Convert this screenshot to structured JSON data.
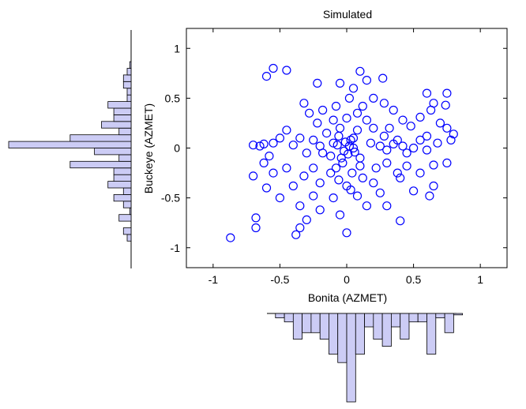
{
  "chart_data": {
    "type": "scatter",
    "title": "Simulated",
    "xlabel": "Bonita (AZMET)",
    "ylabel": "Buckeye (AZMET)",
    "xlim": [
      -1.2,
      1.2
    ],
    "ylim": [
      -1.2,
      1.2
    ],
    "xticks": [
      -1,
      -0.5,
      0,
      0.5,
      1
    ],
    "yticks": [
      -1,
      -0.5,
      0,
      0.5,
      1
    ],
    "xtick_labels": [
      "-1",
      "-0.5",
      "0",
      "0.5",
      "1"
    ],
    "ytick_labels": [
      "-1",
      "-0.5",
      "0",
      "0.5",
      "1"
    ],
    "grid": false,
    "marker": "open circle",
    "marker_color": "#0000ff",
    "points": [
      [
        -0.6,
        0.72
      ],
      [
        -0.55,
        0.8
      ],
      [
        -0.45,
        0.78
      ],
      [
        0.1,
        0.77
      ],
      [
        -0.05,
        0.65
      ],
      [
        0.15,
        0.68
      ],
      [
        0.27,
        0.7
      ],
      [
        -0.22,
        0.65
      ],
      [
        0.05,
        0.6
      ],
      [
        0.6,
        0.55
      ],
      [
        0.75,
        0.55
      ],
      [
        0.74,
        0.43
      ],
      [
        0.65,
        0.45
      ],
      [
        0.8,
        0.14
      ],
      [
        0.75,
        0.2
      ],
      [
        0.78,
        0.08
      ],
      [
        0.63,
        0.38
      ],
      [
        0.7,
        0.25
      ],
      [
        0.55,
        0.31
      ],
      [
        0.48,
        0.22
      ],
      [
        0.6,
        -0.02
      ],
      [
        0.55,
        -0.25
      ],
      [
        0.65,
        -0.17
      ],
      [
        0.75,
        -0.15
      ],
      [
        0.4,
        -0.3
      ],
      [
        0.5,
        -0.43
      ],
      [
        0.62,
        -0.48
      ],
      [
        0.65,
        -0.38
      ],
      [
        0.3,
        -0.58
      ],
      [
        0.4,
        -0.73
      ],
      [
        0.15,
        -0.58
      ],
      [
        -0.05,
        -0.67
      ],
      [
        0.0,
        -0.85
      ],
      [
        -0.3,
        -0.72
      ],
      [
        -0.35,
        -0.8
      ],
      [
        -0.38,
        -0.87
      ],
      [
        -0.87,
        -0.9
      ],
      [
        -0.68,
        -0.7
      ],
      [
        -0.68,
        -0.8
      ],
      [
        -0.7,
        -0.28
      ],
      [
        -0.6,
        -0.4
      ],
      [
        -0.55,
        -0.25
      ],
      [
        -0.5,
        -0.5
      ],
      [
        -0.45,
        -0.2
      ],
      [
        -0.7,
        0.03
      ],
      [
        -0.65,
        0.02
      ],
      [
        -0.62,
        0.04
      ],
      [
        -0.55,
        0.05
      ],
      [
        -0.4,
        0.03
      ],
      [
        -0.25,
        0.08
      ],
      [
        -0.2,
        0.02
      ],
      [
        -0.18,
        -0.05
      ],
      [
        -0.3,
        -0.05
      ],
      [
        -0.35,
        0.1
      ],
      [
        -0.1,
        0.05
      ],
      [
        -0.12,
        -0.08
      ],
      [
        0.02,
        0.02
      ],
      [
        -0.02,
        -0.03
      ],
      [
        0.05,
        0.1
      ],
      [
        -0.05,
        0.2
      ],
      [
        0.0,
        0.3
      ],
      [
        0.08,
        0.35
      ],
      [
        -0.08,
        0.42
      ],
      [
        0.02,
        0.5
      ],
      [
        -0.03,
        -0.15
      ],
      [
        0.04,
        -0.25
      ],
      [
        -0.06,
        -0.32
      ],
      [
        0.03,
        -0.42
      ],
      [
        0.0,
        -0.38
      ],
      [
        0.1,
        -0.1
      ],
      [
        0.18,
        0.05
      ],
      [
        0.25,
        0.02
      ],
      [
        0.3,
        -0.02
      ],
      [
        0.35,
        0.04
      ],
      [
        0.42,
        0.02
      ],
      [
        0.5,
        0.0
      ],
      [
        0.45,
        -0.05
      ],
      [
        0.38,
        0.08
      ],
      [
        0.28,
        0.12
      ],
      [
        0.2,
        0.2
      ],
      [
        0.15,
        0.28
      ],
      [
        0.22,
        -0.2
      ],
      [
        0.3,
        -0.15
      ],
      [
        0.12,
        -0.3
      ],
      [
        0.2,
        -0.35
      ],
      [
        -0.15,
        0.15
      ],
      [
        -0.22,
        0.25
      ],
      [
        -0.28,
        0.35
      ],
      [
        -0.32,
        0.45
      ],
      [
        -0.18,
        0.38
      ],
      [
        -0.1,
        0.28
      ],
      [
        -0.25,
        -0.2
      ],
      [
        -0.32,
        -0.28
      ],
      [
        -0.2,
        -0.35
      ],
      [
        -0.12,
        -0.25
      ],
      [
        -0.4,
        -0.38
      ],
      [
        0.08,
        0.18
      ],
      [
        -0.06,
        0.12
      ],
      [
        0.1,
        -0.18
      ],
      [
        -0.08,
        -0.2
      ],
      [
        0.12,
        0.42
      ],
      [
        0.2,
        0.5
      ],
      [
        0.28,
        0.45
      ],
      [
        0.35,
        0.38
      ],
      [
        0.42,
        0.28
      ],
      [
        0.32,
        0.2
      ],
      [
        0.38,
        -0.25
      ],
      [
        0.45,
        -0.18
      ],
      [
        0.25,
        -0.45
      ],
      [
        0.08,
        -0.48
      ],
      [
        -0.1,
        -0.5
      ],
      [
        -0.25,
        -0.48
      ],
      [
        -0.45,
        0.18
      ],
      [
        -0.5,
        0.1
      ],
      [
        -0.58,
        -0.08
      ],
      [
        -0.62,
        -0.15
      ],
      [
        0.55,
        0.08
      ],
      [
        0.6,
        0.12
      ],
      [
        0.68,
        0.05
      ],
      [
        -0.35,
        -0.58
      ],
      [
        -0.2,
        -0.62
      ],
      [
        0.05,
        0.0
      ],
      [
        -0.01,
        0.06
      ],
      [
        0.01,
        -0.06
      ],
      [
        0.03,
        0.08
      ],
      [
        -0.04,
        -0.1
      ],
      [
        0.06,
        -0.04
      ],
      [
        -0.07,
        0.03
      ]
    ]
  }
}
